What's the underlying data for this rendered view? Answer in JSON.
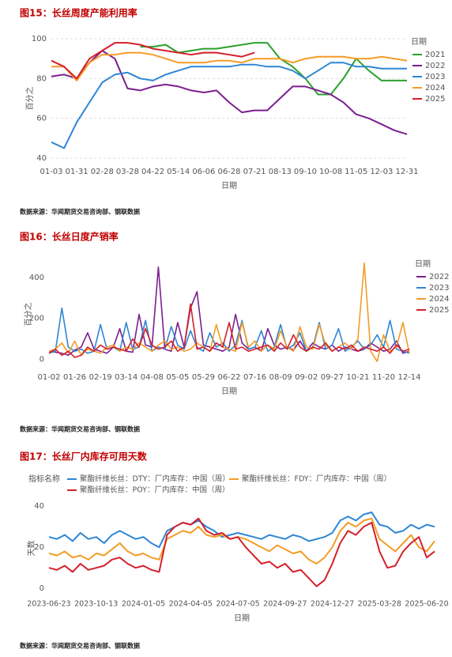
{
  "chart_data": [
    {
      "type": "line",
      "title": "图15：长丝周度产能利用率",
      "source": "数据来源：华闻期货交易咨询部、钢联数据",
      "x_label": "日期",
      "y_label": "百分之",
      "legend_title": "日期",
      "categories": [
        "01-03",
        null,
        "01-31",
        null,
        "02-28",
        null,
        "03-28",
        null,
        "04-22",
        null,
        "05-14",
        null,
        "06-06",
        null,
        "06-28",
        null,
        "07-21",
        null,
        "08-13",
        null,
        "09-10",
        null,
        "10-08",
        null,
        "11-05",
        null,
        "12-03",
        null,
        "12-31"
      ],
      "ylim": [
        38,
        102
      ],
      "yticks": [
        40,
        60,
        80,
        100
      ],
      "grid": true,
      "series": [
        {
          "name": "2021",
          "color": "#2ca02c",
          "values": [
            null,
            null,
            null,
            null,
            null,
            null,
            null,
            96,
            96,
            97,
            93,
            94,
            95,
            95,
            96,
            97,
            98,
            98,
            90,
            86,
            80,
            72,
            72,
            80,
            90,
            84,
            79,
            79,
            79
          ]
        },
        {
          "name": "2022",
          "color": "#7b1f8f",
          "values": [
            81,
            82,
            80,
            88,
            94,
            90,
            75,
            74,
            76,
            77,
            76,
            74,
            73,
            74,
            68,
            63,
            64,
            64,
            70,
            76,
            76,
            74,
            72,
            68,
            62,
            60,
            57,
            54,
            52
          ]
        },
        {
          "name": "2023",
          "color": "#2e86d4",
          "values": [
            48,
            45,
            58,
            68,
            78,
            82,
            83,
            80,
            79,
            82,
            84,
            86,
            86,
            86,
            86,
            87,
            87,
            86,
            86,
            84,
            80,
            84,
            88,
            88,
            86,
            86,
            85,
            85,
            85
          ]
        },
        {
          "name": "2024",
          "color": "#f39c27",
          "values": [
            86,
            86,
            79,
            88,
            92,
            92,
            93,
            93,
            92,
            90,
            88,
            88,
            88,
            89,
            89,
            88,
            90,
            90,
            90,
            88,
            90,
            91,
            91,
            91,
            90,
            90,
            91,
            90,
            89
          ]
        },
        {
          "name": "2025",
          "color": "#d4202a",
          "values": [
            89,
            86,
            80,
            90,
            94,
            98,
            98,
            97,
            95,
            94,
            93,
            92,
            93,
            93,
            92,
            91,
            93,
            null,
            null,
            null,
            null,
            null,
            null,
            null,
            null,
            null,
            null,
            null,
            null
          ]
        }
      ]
    },
    {
      "type": "line",
      "title": "图16：长丝日度产销率",
      "source": "数据来源：华闻期货交易咨询部、钢联数据",
      "x_label": "日期",
      "y_label": "百分之",
      "legend_title": "日期",
      "categories": [
        "01-02",
        null,
        null,
        null,
        "01-26",
        null,
        null,
        null,
        "02-19",
        null,
        null,
        null,
        "03-14",
        null,
        null,
        null,
        "04-08",
        null,
        null,
        null,
        "05-05",
        null,
        null,
        null,
        "05-29",
        null,
        null,
        null,
        "06-22",
        null,
        null,
        null,
        "07-16",
        null,
        null,
        null,
        "08-09",
        null,
        null,
        null,
        "09-02",
        null,
        null,
        null,
        "09-27",
        null,
        null,
        null,
        "10-21",
        null,
        null,
        null,
        "11-20",
        null,
        null,
        null,
        "12-14"
      ],
      "ylim": [
        -40,
        480
      ],
      "yticks": [
        0,
        200,
        400
      ],
      "grid": false,
      "series": [
        {
          "name": "2022",
          "color": "#7b1f8f",
          "values": [
            40,
            35,
            30,
            20,
            45,
            60,
            130,
            50,
            40,
            30,
            60,
            150,
            40,
            35,
            220,
            70,
            60,
            450,
            50,
            40,
            180,
            60,
            250,
            330,
            70,
            60,
            50,
            40,
            60,
            220,
            80,
            50,
            60,
            40,
            150,
            70,
            50,
            60,
            45,
            90,
            40,
            80,
            60,
            50,
            70,
            40,
            60,
            50,
            40,
            50,
            80,
            60,
            40,
            50,
            90,
            30,
            40
          ]
        },
        {
          "name": "2023",
          "color": "#2e86d4",
          "values": [
            30,
            40,
            250,
            60,
            40,
            50,
            30,
            40,
            170,
            50,
            60,
            40,
            180,
            50,
            60,
            190,
            40,
            60,
            50,
            160,
            70,
            50,
            140,
            60,
            40,
            130,
            60,
            80,
            40,
            70,
            190,
            50,
            60,
            140,
            40,
            60,
            170,
            50,
            70,
            130,
            40,
            60,
            180,
            50,
            70,
            150,
            40,
            60,
            90,
            50,
            70,
            120,
            60,
            190,
            50,
            40,
            30
          ]
        },
        {
          "name": "2024",
          "color": "#f39c27",
          "values": [
            40,
            50,
            80,
            30,
            90,
            20,
            50,
            40,
            30,
            60,
            70,
            40,
            60,
            50,
            80,
            60,
            40,
            70,
            90,
            50,
            60,
            40,
            50,
            80,
            60,
            40,
            170,
            60,
            50,
            40,
            180,
            60,
            90,
            40,
            70,
            50,
            140,
            60,
            40,
            160,
            60,
            50,
            170,
            70,
            40,
            60,
            80,
            50,
            100,
            470,
            40,
            -10,
            120,
            40,
            60,
            180,
            30
          ]
        },
        {
          "name": "2025",
          "color": "#d4202a",
          "values": [
            30,
            50,
            20,
            40,
            10,
            20,
            60,
            40,
            70,
            50,
            60,
            50,
            40,
            100,
            60,
            150,
            70,
            50,
            60,
            90,
            40,
            60,
            270,
            50,
            60,
            40,
            80,
            60,
            180,
            50,
            60,
            40,
            50,
            60,
            70,
            40,
            80,
            50,
            120,
            60,
            40,
            60,
            50,
            80,
            40,
            60,
            50,
            70,
            40,
            60,
            50,
            40,
            60,
            30,
            70,
            40,
            50
          ]
        }
      ]
    },
    {
      "type": "line",
      "title": "图17：长丝厂内库存可用天数",
      "source": "数据来源：华闻期货交易咨询部、钢联数据",
      "x_label": "日期",
      "y_label": "天数",
      "legend_title": "指标名称",
      "categories": [
        "2023-06-23",
        null,
        null,
        null,
        null,
        null,
        "2023-10-13",
        null,
        null,
        null,
        null,
        null,
        "2024-01-05",
        null,
        null,
        null,
        null,
        null,
        "2024-04-05",
        null,
        null,
        null,
        null,
        null,
        "2024-07-05",
        null,
        null,
        null,
        null,
        null,
        "2024-09-27",
        null,
        null,
        null,
        null,
        null,
        "2024-12-27",
        null,
        null,
        null,
        null,
        null,
        "2025-03-28",
        null,
        null,
        null,
        null,
        null,
        "2025-06-20",
        null
      ],
      "ylim": [
        -3,
        42
      ],
      "yticks": [
        0,
        20,
        40
      ],
      "grid": false,
      "series": [
        {
          "name": "聚酯纤维长丝：DTY：厂内库存：中国（周）",
          "color": "#2e86d4",
          "values": [
            25,
            24,
            26,
            23,
            27,
            24,
            25,
            22,
            26,
            28,
            26,
            24,
            25,
            22,
            20,
            28,
            30,
            32,
            31,
            33,
            30,
            28,
            25,
            26,
            27,
            26,
            25,
            24,
            26,
            25,
            24,
            26,
            25,
            23,
            24,
            25,
            27,
            33,
            35,
            33,
            36,
            37,
            31,
            30,
            27,
            28,
            31,
            29,
            31,
            30
          ]
        },
        {
          "name": "聚酯纤维长丝：FDY：厂内库存：中国（周）",
          "color": "#f39c27",
          "values": [
            17,
            16,
            18,
            15,
            16,
            14,
            17,
            16,
            19,
            22,
            18,
            16,
            17,
            15,
            14,
            24,
            26,
            28,
            27,
            30,
            26,
            25,
            26,
            24,
            25,
            24,
            22,
            20,
            18,
            21,
            19,
            17,
            18,
            14,
            12,
            15,
            20,
            28,
            32,
            30,
            33,
            34,
            24,
            21,
            18,
            22,
            26,
            20,
            18,
            23
          ]
        },
        {
          "name": "聚酯纤维长丝：POY：厂内库存：中国（周）",
          "color": "#d4202a",
          "values": [
            10,
            9,
            11,
            8,
            12,
            9,
            10,
            11,
            14,
            15,
            12,
            10,
            11,
            9,
            8,
            26,
            30,
            32,
            31,
            34,
            28,
            26,
            27,
            24,
            25,
            20,
            16,
            12,
            13,
            10,
            12,
            8,
            9,
            5,
            1,
            4,
            12,
            22,
            28,
            26,
            30,
            32,
            18,
            10,
            11,
            18,
            22,
            25,
            15,
            18
          ]
        }
      ]
    }
  ]
}
